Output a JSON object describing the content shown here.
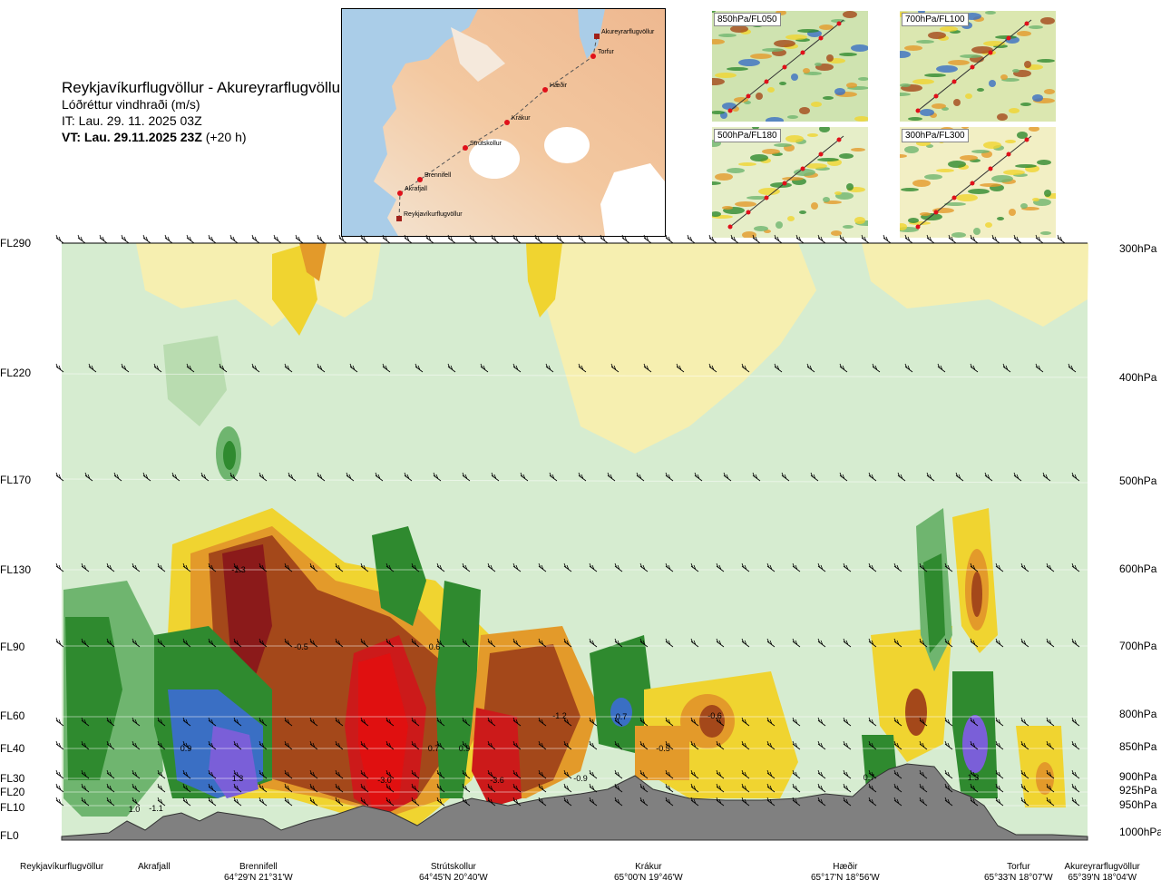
{
  "header": {
    "title": "Reykjavíkurflugvöllur - Akureyrarflugvöllur",
    "subtitle": "Lóðréttur vindhraði (m/s)",
    "it": "IT: Lau. 29. 11. 2025 03Z",
    "vt_bold": "VT: Lau. 29.11.2025 23Z",
    "vt_rest": "(+20 h)"
  },
  "route_map": {
    "points": [
      "Akureyrarflugvöllur",
      "Torfur",
      "Hæðir",
      "Krákur",
      "Strútskollur",
      "Brennifell",
      "Akrafjall",
      "Reykjavíkurflugvöllur"
    ]
  },
  "thumbnails": [
    {
      "label": "850hPa/FL050"
    },
    {
      "label": "700hPa/FL100"
    },
    {
      "label": "500hPa/FL180"
    },
    {
      "label": "300hPa/FL300"
    }
  ],
  "flight_levels": [
    "FL290",
    "FL220",
    "FL170",
    "FL130",
    "FL90",
    "FL60",
    "FL40",
    "FL30",
    "FL20",
    "FL10",
    "FL0"
  ],
  "pressure_levels": [
    "300hPa",
    "400hPa",
    "500hPa",
    "600hPa",
    "700hPa",
    "800hPa",
    "850hPa",
    "900hPa",
    "925hPa",
    "950hPa",
    "1000hPa"
  ],
  "locations": [
    {
      "name": "Reykjavíkurflugvöllur",
      "coord": ""
    },
    {
      "name": "Akrafjall",
      "coord": ""
    },
    {
      "name": "Brennifell",
      "coord": "64°29'N 21°31'W"
    },
    {
      "name": "Strútskollur",
      "coord": "64°45'N 20°40'W"
    },
    {
      "name": "Krákur",
      "coord": "65°00'N 19°46'W"
    },
    {
      "name": "Hæðir",
      "coord": "65°17'N 18°56'W"
    },
    {
      "name": "Torfur",
      "coord": "65°33'N 18°07'W"
    },
    {
      "name": "Akureyrarflugvöllur",
      "coord": "65°39'N 18°04'W"
    }
  ],
  "value_labels": [
    "-1.3",
    "-0.5",
    "0.6",
    "-1.2",
    "0.7",
    "-0.6",
    "0.9",
    "0.7",
    "0.9",
    "-0.5",
    "1.3",
    "-3.0",
    "-3.6",
    "-0.9",
    "0.7",
    "1.3",
    "1.0",
    "-1.1"
  ],
  "colors": {
    "strong_up_blue": "#3a6fc4",
    "up_purple": "#7a5fd8",
    "up_dark_green": "#2f8a2f",
    "up_green": "#6fb56f",
    "up_light_green": "#b9dcb0",
    "neutral_pale": "#d6ecd0",
    "down_pale_yellow": "#f6efb0",
    "down_yellow": "#f0d430",
    "down_orange": "#e39a2a",
    "down_brown": "#a4481a",
    "down_red": "#cc1a1a",
    "terrain": "#808080"
  }
}
